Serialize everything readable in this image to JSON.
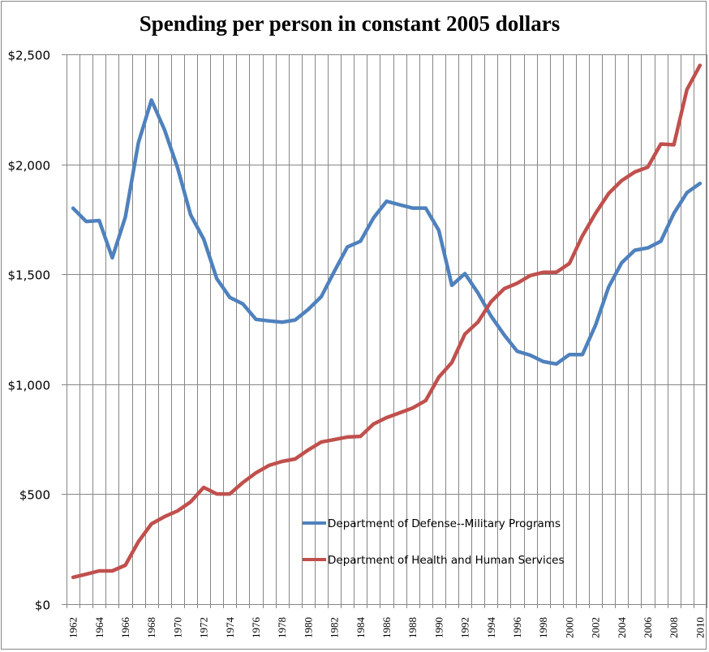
{
  "chart_data": {
    "type": "line",
    "title": "Spending per person in constant 2005 dollars",
    "xlabel": "",
    "ylabel": "",
    "ylim": [
      0,
      2500
    ],
    "y_ticks": [
      0,
      500,
      1000,
      1500,
      2000,
      2500
    ],
    "y_tick_labels": [
      "$0",
      "$500",
      "$1,000",
      "$1,500",
      "$2,000",
      "$2,500"
    ],
    "x": [
      1962,
      1963,
      1964,
      1965,
      1966,
      1967,
      1968,
      1969,
      1970,
      1971,
      1972,
      1973,
      1974,
      1975,
      1976,
      1977,
      1978,
      1979,
      1980,
      1981,
      1982,
      1983,
      1984,
      1985,
      1986,
      1987,
      1988,
      1989,
      1990,
      1991,
      1992,
      1993,
      1994,
      1995,
      1996,
      1997,
      1998,
      1999,
      2000,
      2001,
      2002,
      2003,
      2004,
      2005,
      2006,
      2007,
      2008,
      2009,
      2010
    ],
    "x_tick_labels": [
      "1962",
      "1964",
      "1966",
      "1968",
      "1970",
      "1972",
      "1974",
      "1976",
      "1978",
      "1980",
      "1982",
      "1984",
      "1986",
      "1988",
      "1990",
      "1992",
      "1994",
      "1996",
      "1998",
      "2000",
      "2002",
      "2004",
      "2006",
      "2008",
      "2010"
    ],
    "grid": "both",
    "legend_position": "center-bottom",
    "series": [
      {
        "name": "Department of Defense--Military Programs",
        "color": "#4f81bd",
        "values": [
          1800,
          1740,
          1744,
          1575,
          1760,
          2098,
          2292,
          2157,
          1984,
          1770,
          1660,
          1480,
          1395,
          1365,
          1295,
          1288,
          1282,
          1292,
          1340,
          1398,
          1513,
          1624,
          1650,
          1756,
          1832,
          1816,
          1801,
          1801,
          1700,
          1450,
          1503,
          1415,
          1310,
          1225,
          1150,
          1132,
          1103,
          1092,
          1135,
          1135,
          1268,
          1441,
          1552,
          1609,
          1620,
          1650,
          1777,
          1871,
          1913
        ]
      },
      {
        "name": "Department of Health and Human Services",
        "color": "#c0504d",
        "values": [
          122,
          136,
          151,
          151,
          177,
          284,
          365,
          398,
          424,
          465,
          531,
          501,
          501,
          553,
          597,
          631,
          649,
          660,
          701,
          737,
          748,
          760,
          763,
          819,
          848,
          870,
          892,
          926,
          1032,
          1099,
          1228,
          1283,
          1375,
          1434,
          1459,
          1494,
          1509,
          1509,
          1549,
          1675,
          1777,
          1867,
          1926,
          1965,
          1987,
          2092,
          2089,
          2340,
          2450
        ]
      }
    ]
  }
}
